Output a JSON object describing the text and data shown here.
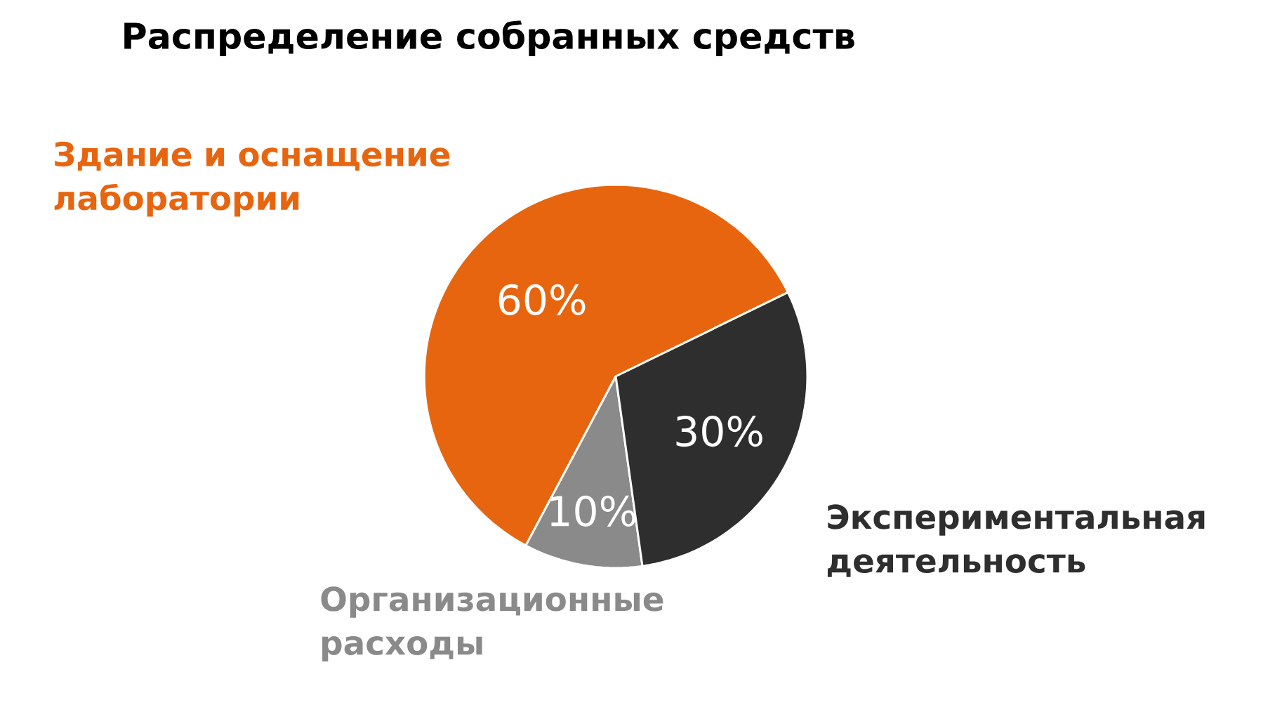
{
  "chart_data": {
    "type": "pie",
    "title": "Распределение собранных  средств",
    "categories": [
      "Здание и оснащение лаборатории",
      "Организационные расходы",
      "Экспериментальная деятельность"
    ],
    "values": [
      60,
      10,
      30
    ],
    "value_labels": [
      "60%",
      "10%",
      "30%"
    ],
    "colors": [
      "#e8650f",
      "#8a8a8a",
      "#2e2e2e"
    ]
  }
}
